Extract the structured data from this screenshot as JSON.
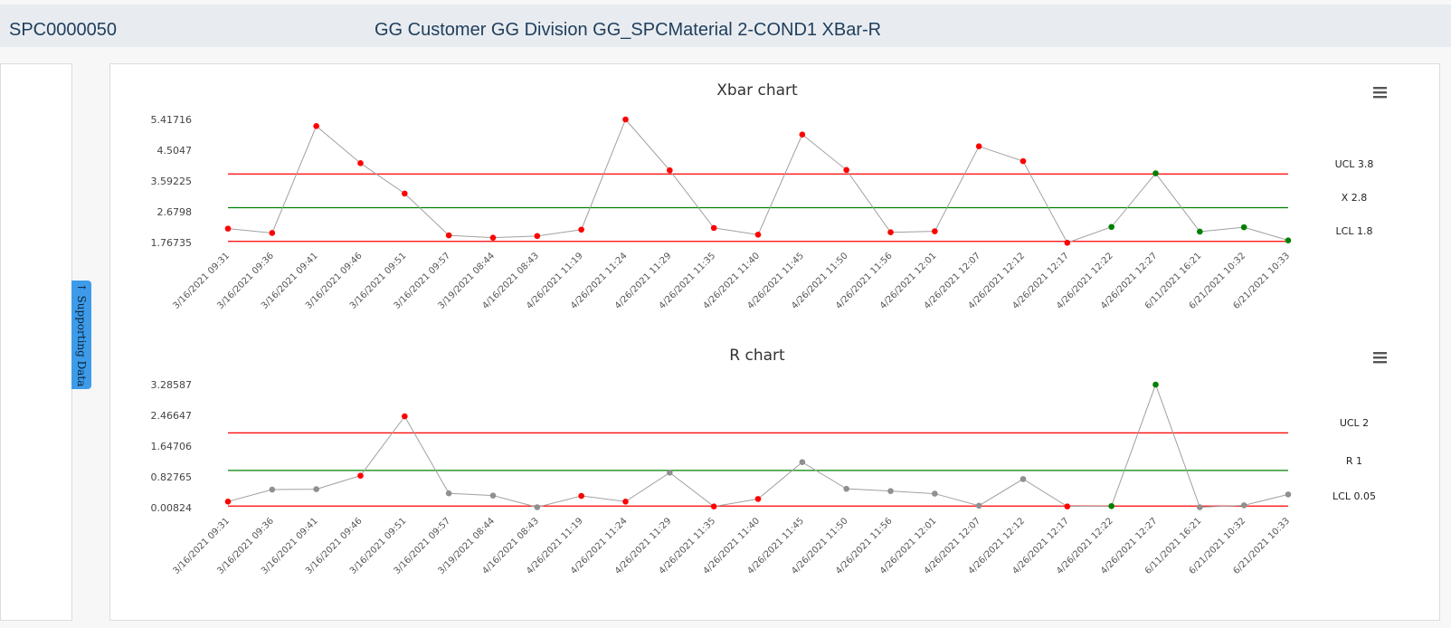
{
  "header": {
    "id": "SPC0000050",
    "title": "GG Customer GG Division GG_SPCMaterial 2-COND1 XBar-R"
  },
  "side_tab": {
    "label": "Supporting Data",
    "icon": "arrow-up-icon"
  },
  "colors": {
    "limit": "#ff0000",
    "center": "#008000",
    "line": "#a0a0a0",
    "out_of_control": "#ff0000",
    "in_control_green": "#008000",
    "normal": "#909090"
  },
  "chart_data": [
    {
      "type": "line",
      "title": "Xbar chart",
      "categories": [
        "3/16/2021 09:31",
        "3/16/2021 09:36",
        "3/16/2021 09:41",
        "3/16/2021 09:46",
        "3/16/2021 09:51",
        "3/16/2021 09:57",
        "3/19/2021 08:44",
        "4/16/2021 08:43",
        "4/26/2021 11:19",
        "4/26/2021 11:24",
        "4/26/2021 11:29",
        "4/26/2021 11:35",
        "4/26/2021 11:40",
        "4/26/2021 11:45",
        "4/26/2021 11:50",
        "4/26/2021 11:56",
        "4/26/2021 12:01",
        "4/26/2021 12:07",
        "4/26/2021 12:12",
        "4/26/2021 12:17",
        "4/26/2021 12:22",
        "4/26/2021 12:27",
        "6/11/2021 16:21",
        "6/21/2021 10:32",
        "6/21/2021 10:33"
      ],
      "values": [
        2.18,
        2.05,
        5.22,
        4.12,
        3.22,
        1.98,
        1.91,
        1.96,
        2.15,
        5.41716,
        3.91,
        2.2,
        2.0,
        4.97,
        3.92,
        2.07,
        2.1,
        4.62,
        4.18,
        1.76,
        2.23,
        3.82,
        2.09,
        2.22,
        1.83
      ],
      "point_status": [
        "out",
        "out",
        "out",
        "out",
        "out",
        "out",
        "out",
        "out",
        "out",
        "out",
        "out",
        "out",
        "out",
        "out",
        "out",
        "out",
        "out",
        "out",
        "out",
        "out",
        "in",
        "in",
        "in",
        "in",
        "in"
      ],
      "yticks": [
        "5.41716",
        "4.5047",
        "3.59225",
        "2.6798",
        "1.76735"
      ],
      "ylim": [
        1.76735,
        5.41716
      ],
      "limits": [
        {
          "name": "UCL 3.8",
          "value": 3.8,
          "kind": "limit"
        },
        {
          "name": "X 2.8",
          "value": 2.8,
          "kind": "center"
        },
        {
          "name": "LCL 1.8",
          "value": 1.8,
          "kind": "limit"
        }
      ],
      "menu_icon": "hamburger-menu-icon"
    },
    {
      "type": "line",
      "title": "R chart",
      "categories": [
        "3/16/2021 09:31",
        "3/16/2021 09:36",
        "3/16/2021 09:41",
        "3/16/2021 09:46",
        "3/16/2021 09:51",
        "3/16/2021 09:57",
        "3/19/2021 08:44",
        "4/16/2021 08:43",
        "4/26/2021 11:19",
        "4/26/2021 11:24",
        "4/26/2021 11:29",
        "4/26/2021 11:35",
        "4/26/2021 11:40",
        "4/26/2021 11:45",
        "4/26/2021 11:50",
        "4/26/2021 11:56",
        "4/26/2021 12:01",
        "4/26/2021 12:07",
        "4/26/2021 12:12",
        "4/26/2021 12:17",
        "4/26/2021 12:22",
        "4/26/2021 12:27",
        "6/11/2021 16:21",
        "6/21/2021 10:32",
        "6/21/2021 10:33"
      ],
      "values": [
        0.17,
        0.49,
        0.5,
        0.86,
        2.44,
        0.39,
        0.33,
        0.02,
        0.32,
        0.17,
        0.94,
        0.04,
        0.24,
        1.22,
        0.51,
        0.45,
        0.38,
        0.06,
        0.77,
        0.04,
        0.05,
        3.28587,
        0.02,
        0.07,
        0.36
      ],
      "point_status": [
        "out",
        "normal",
        "normal",
        "out",
        "out",
        "normal",
        "normal",
        "normal",
        "out",
        "out",
        "normal",
        "out",
        "out",
        "normal",
        "normal",
        "normal",
        "normal",
        "normal",
        "normal",
        "out",
        "in",
        "in",
        "normal",
        "normal",
        "normal"
      ],
      "yticks": [
        "3.28587",
        "2.46647",
        "1.64706",
        "0.82765",
        "0.00824"
      ],
      "ylim": [
        0.00824,
        3.28587
      ],
      "limits": [
        {
          "name": "UCL 2",
          "value": 2.0,
          "kind": "limit"
        },
        {
          "name": "R 1",
          "value": 1.0,
          "kind": "center"
        },
        {
          "name": "LCL 0.05",
          "value": 0.05,
          "kind": "limit"
        }
      ],
      "menu_icon": "hamburger-menu-icon"
    }
  ]
}
